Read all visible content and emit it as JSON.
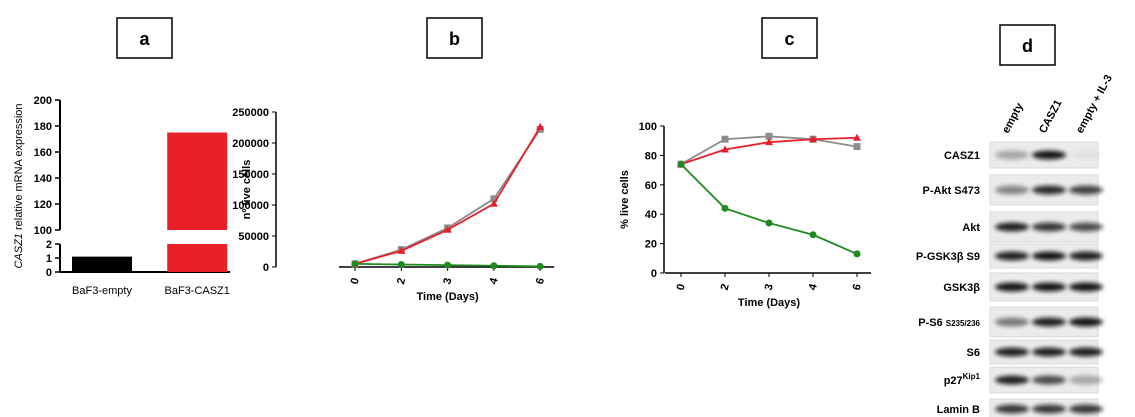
{
  "chart_data": [
    {
      "type": "bar",
      "panel": "a",
      "y_label_gene": "CASZ1",
      "y_label": "relative mRNA expression",
      "categories": [
        "BaF3-empty",
        "BaF3-CASZ1"
      ],
      "values": [
        1.1,
        175
      ],
      "colors": [
        "#000000",
        "#e8202a"
      ],
      "ylim": [
        0,
        200
      ],
      "ybreak": [
        2,
        100
      ],
      "yticks": [
        0,
        1,
        2,
        100,
        120,
        140,
        160,
        180,
        200
      ]
    },
    {
      "type": "line",
      "panel": "b",
      "y_label": "nº live cells",
      "x_label": "Time (Days)",
      "categories": [
        "0",
        "2",
        "3",
        "4",
        "6"
      ],
      "series": [
        {
          "color": "#8c8c8c",
          "marker": "square",
          "values": [
            5000,
            28000,
            63000,
            110000,
            222000
          ]
        },
        {
          "color": "#e8202a",
          "marker": "triangle",
          "values": [
            5000,
            26000,
            60000,
            102000,
            226000
          ]
        },
        {
          "color": "#1f8a1f",
          "marker": "circle",
          "values": [
            5000,
            4000,
            3000,
            2000,
            1000
          ]
        }
      ],
      "ylim": [
        0,
        250000
      ],
      "yticks": [
        0,
        50000,
        100000,
        150000,
        200000,
        250000
      ]
    },
    {
      "type": "line",
      "panel": "c",
      "y_label": "% live cells",
      "x_label": "Time (Days)",
      "categories": [
        "0",
        "2",
        "3",
        "4",
        "6"
      ],
      "series": [
        {
          "color": "#8c8c8c",
          "marker": "square",
          "values": [
            74,
            91,
            93,
            91,
            86
          ]
        },
        {
          "color": "#e8202a",
          "marker": "triangle",
          "values": [
            74,
            84,
            89,
            91,
            92
          ]
        },
        {
          "color": "#1f8a1f",
          "marker": "circle",
          "values": [
            74,
            44,
            34,
            26,
            13
          ]
        }
      ],
      "ylim": [
        0,
        100
      ],
      "yticks": [
        0,
        20,
        40,
        60,
        80,
        100
      ]
    }
  ],
  "blot": {
    "panel": "d",
    "lanes": [
      {
        "label": "empty",
        "color": "#000000"
      },
      {
        "label": "CASZ1",
        "color": "#e8202a"
      },
      {
        "label": "empty + IL-3",
        "color": "#bdbdbd"
      }
    ],
    "rows": [
      {
        "label": "CASZ1",
        "color": "#000000"
      },
      {
        "label": "P-Akt S473",
        "color": "#e8202a"
      },
      {
        "label": "Akt",
        "color": "#000000"
      },
      {
        "label": "P-GSK3β S9",
        "color": "#e8202a"
      },
      {
        "label": "GSK3β",
        "color": "#000000"
      },
      {
        "label": "P-S6",
        "sub": "S235/236",
        "color": "#e8202a"
      },
      {
        "label": "S6",
        "color": "#000000"
      },
      {
        "label": "p27",
        "sup": "Kip1",
        "color": "#000000"
      },
      {
        "label": "Lamin B",
        "color": "#000000"
      }
    ]
  }
}
